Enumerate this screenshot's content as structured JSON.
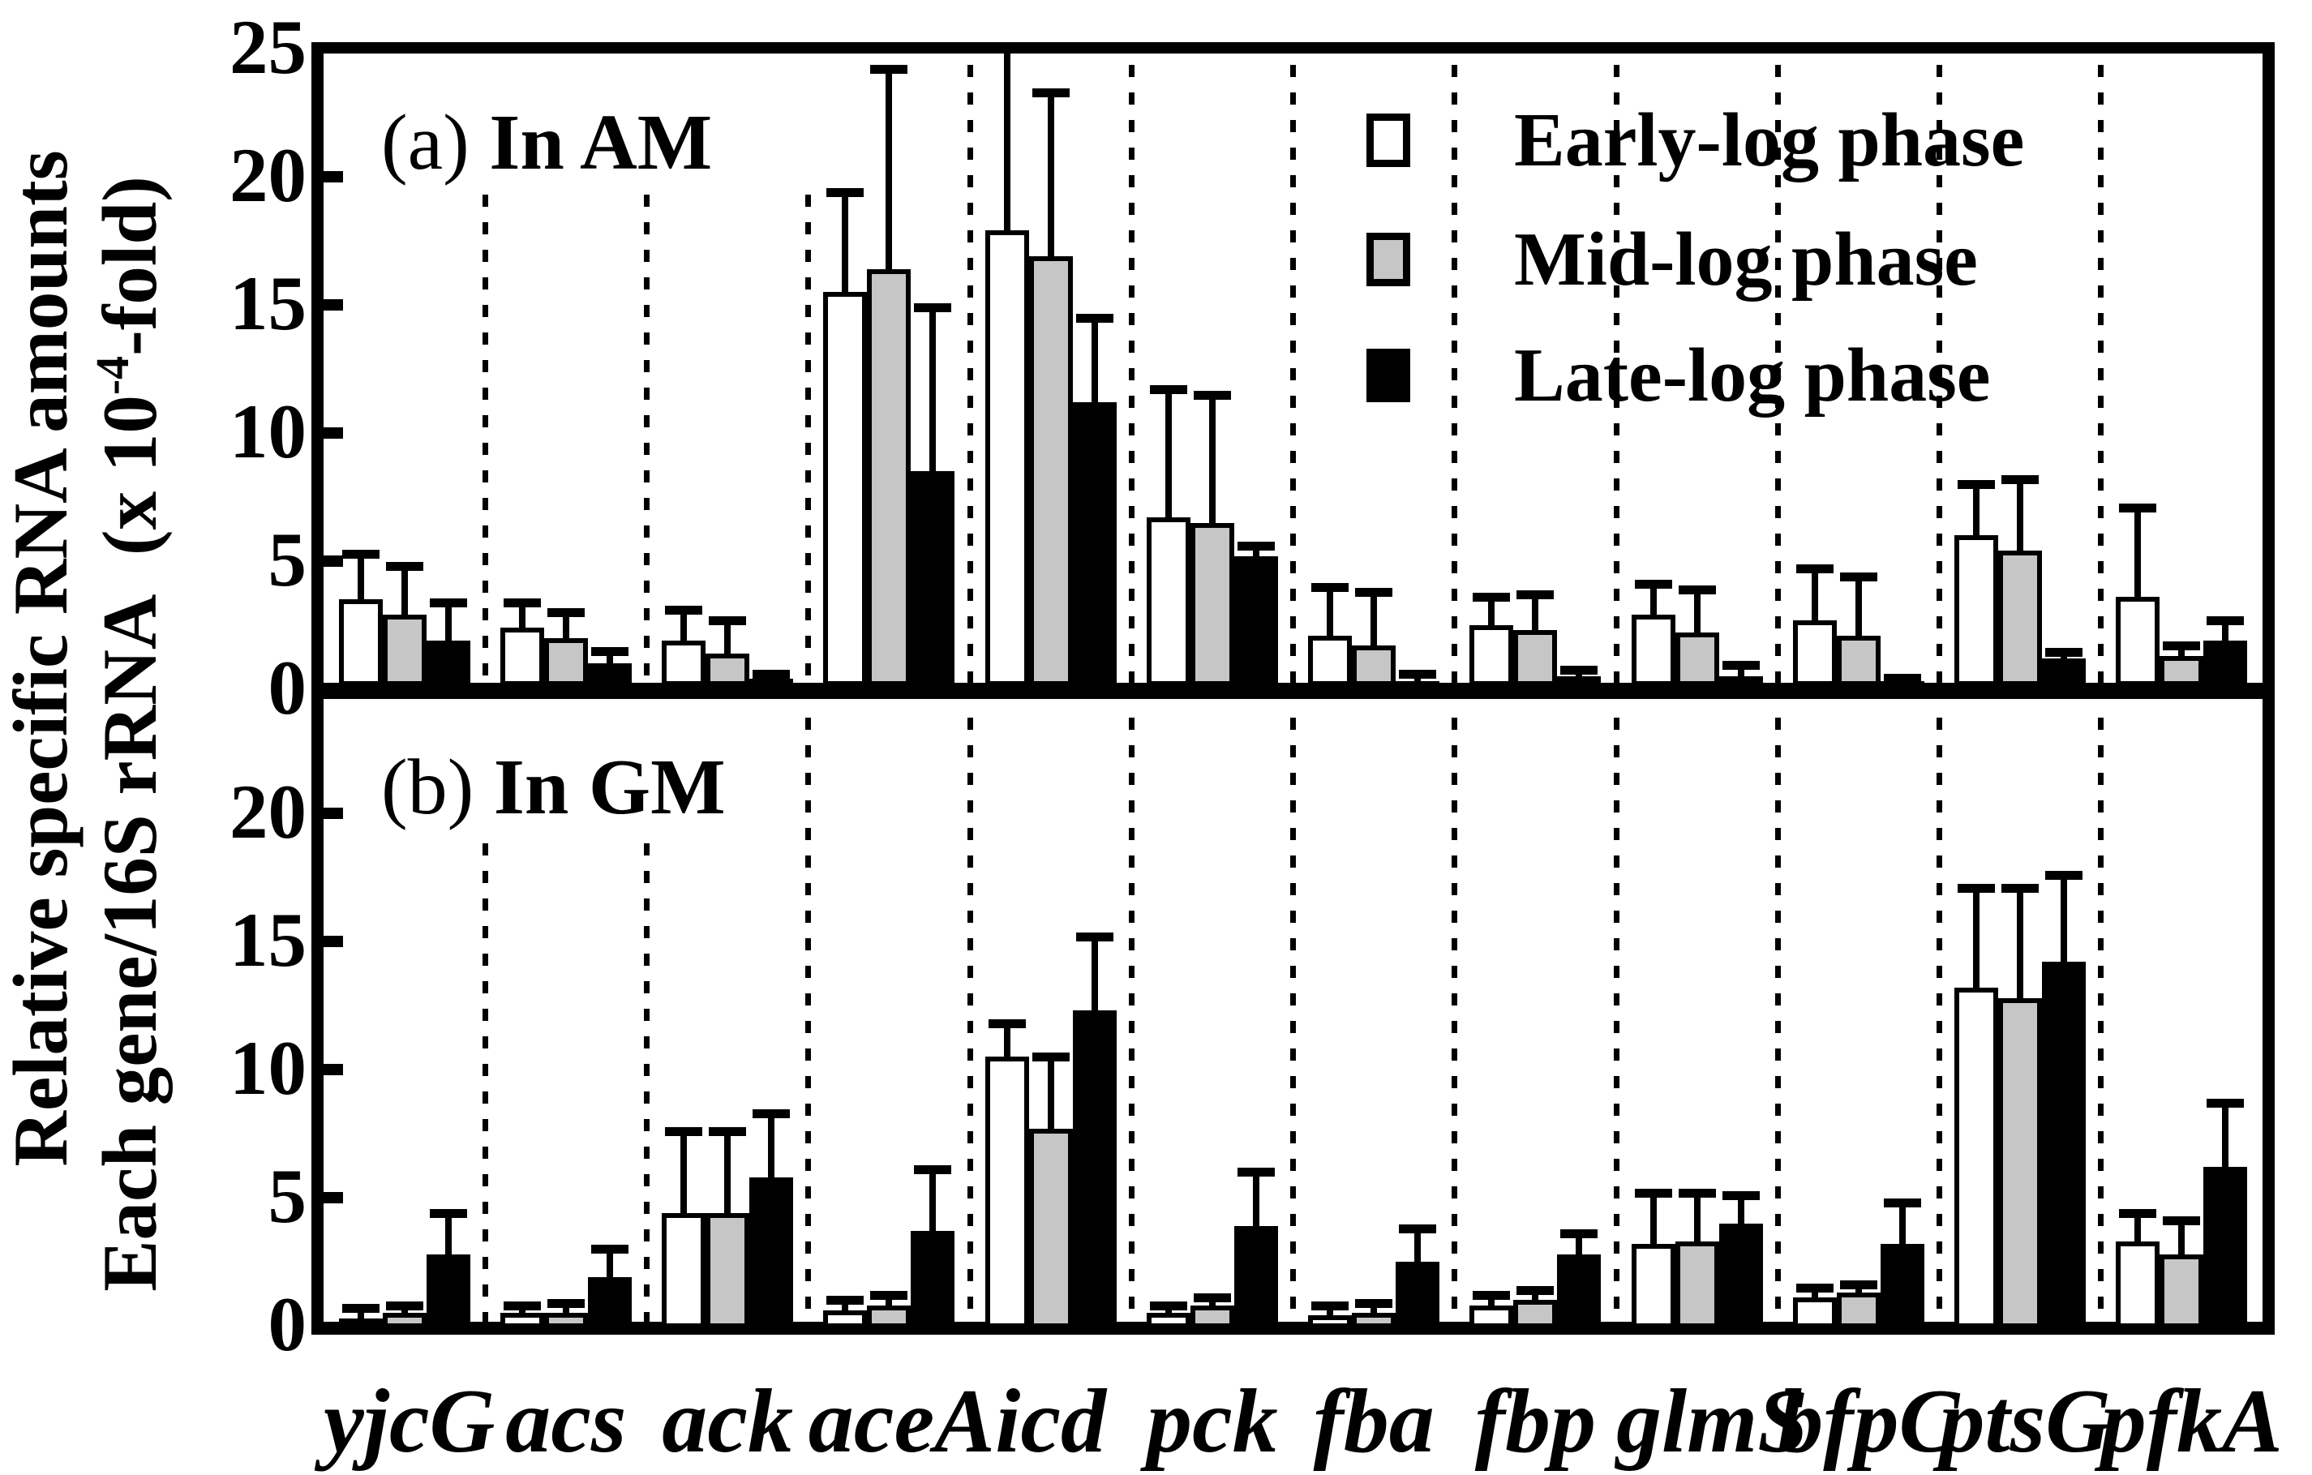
{
  "colors": {
    "ink": "#000000",
    "background": "#ffffff",
    "early": "#ffffff",
    "mid": "#c6c6c6",
    "late": "#000000"
  },
  "y_axis": {
    "label_line1": "Relative specific RNA amounts",
    "label_line2_pre": "Each gene/16S rRNA  (x 10",
    "label_line2_sup": "-4",
    "label_line2_post": "-fold)"
  },
  "legend": {
    "items": [
      {
        "name": "early-log",
        "label": "Early-log phase",
        "color": "#ffffff"
      },
      {
        "name": "mid-log",
        "label": "Mid-log phase",
        "color": "#c6c6c6"
      },
      {
        "name": "late-log",
        "label": "Late-log phase",
        "color": "#000000"
      }
    ]
  },
  "chart_data": [
    {
      "type": "bar",
      "panel_tag": "(a)",
      "panel_title": "In AM",
      "ylabel": "Relative specific RNA amounts / Each gene/16S rRNA (x 10^-4 -fold)",
      "ylim": [
        0,
        25
      ],
      "yticks": [
        25,
        20,
        15,
        10,
        5,
        0
      ],
      "grid": "dotted vertical separators between gene groups",
      "legend_position": "top-right-inside",
      "categories": [
        "yjcG",
        "acs",
        "ack",
        "aceA",
        "icd",
        "pck",
        "fba",
        "fbp",
        "glmS",
        "bfpC",
        "ptsG",
        "pfkA"
      ],
      "series": [
        {
          "name": "Early-log phase",
          "values": [
            3.5,
            2.4,
            1.9,
            15.5,
            17.9,
            6.7,
            2.1,
            2.5,
            2.9,
            2.7,
            6.0,
            3.6
          ],
          "errors_up": [
            1.8,
            1.0,
            1.2,
            3.9,
            7.1,
            5.0,
            1.9,
            1.1,
            1.2,
            2.0,
            2.0,
            3.5
          ]
        },
        {
          "name": "Mid-log phase",
          "values": [
            2.9,
            2.0,
            1.4,
            16.4,
            16.9,
            6.5,
            1.7,
            2.3,
            2.2,
            2.1,
            5.4,
            1.3
          ],
          "errors_up": [
            1.9,
            1.0,
            1.3,
            7.8,
            6.4,
            5.0,
            2.1,
            1.4,
            1.7,
            2.3,
            2.8,
            0.4
          ]
        },
        {
          "name": "Late-log phase",
          "values": [
            1.9,
            1.0,
            0.4,
            8.5,
            11.2,
            5.2,
            0.3,
            0.5,
            0.5,
            0.3,
            1.2,
            1.9
          ],
          "errors_up": [
            1.5,
            0.5,
            0.2,
            6.4,
            3.3,
            0.4,
            0.3,
            0.25,
            0.45,
            0.15,
            0.25,
            0.8
          ]
        }
      ]
    },
    {
      "type": "bar",
      "panel_tag": "(b)",
      "panel_title": "In GM",
      "ylim": [
        0,
        24
      ],
      "yticks": [
        20,
        15,
        10,
        5,
        0
      ],
      "grid": "dotted vertical separators between gene groups",
      "categories": [
        "yjcG",
        "acs",
        "ack",
        "aceA",
        "icd",
        "pck",
        "fba",
        "fbp",
        "glmS",
        "bfpC",
        "ptsG",
        "pfkA"
      ],
      "series": [
        {
          "name": "Early-log phase",
          "values": [
            0.3,
            0.5,
            4.4,
            0.6,
            10.5,
            0.5,
            0.4,
            0.8,
            3.2,
            1.1,
            13.2,
            3.3
          ],
          "errors_up": [
            0.4,
            0.3,
            3.2,
            0.4,
            1.3,
            0.3,
            0.4,
            0.4,
            2.0,
            0.4,
            3.9,
            1.1
          ]
        },
        {
          "name": "Mid-log phase",
          "values": [
            0.5,
            0.5,
            4.4,
            0.8,
            7.7,
            0.8,
            0.5,
            1.0,
            3.3,
            1.3,
            12.8,
            2.8
          ],
          "errors_up": [
            0.3,
            0.4,
            3.2,
            0.4,
            2.8,
            0.3,
            0.4,
            0.4,
            1.9,
            0.3,
            4.3,
            1.3
          ]
        },
        {
          "name": "Late-log phase",
          "values": [
            2.8,
            1.9,
            5.8,
            3.7,
            12.3,
            3.9,
            2.5,
            2.8,
            4.0,
            3.2,
            14.2,
            6.2
          ],
          "errors_up": [
            1.6,
            1.1,
            2.5,
            2.4,
            2.9,
            2.1,
            1.3,
            0.8,
            1.1,
            1.6,
            3.4,
            2.5
          ]
        }
      ]
    }
  ]
}
